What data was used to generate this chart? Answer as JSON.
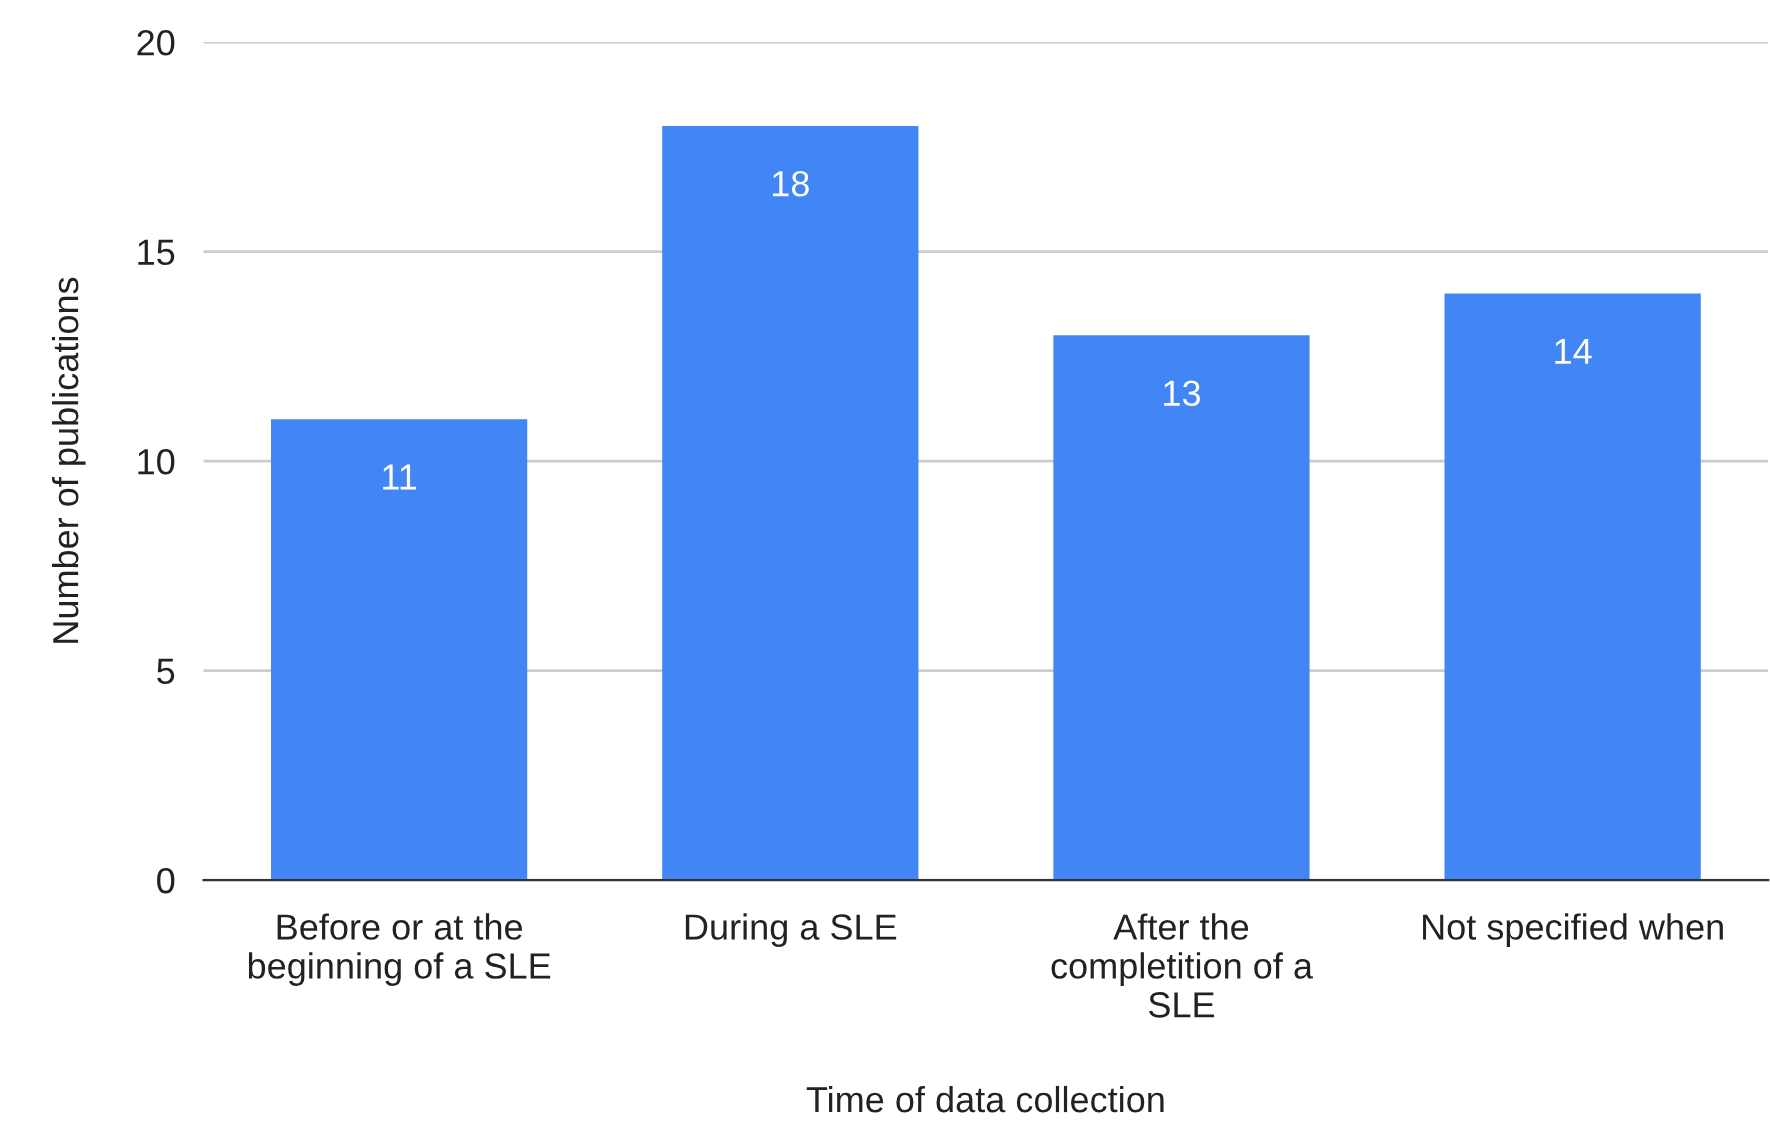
{
  "chart_data": {
    "type": "bar",
    "xlabel": "Time of data collection",
    "ylabel": "Number of publications",
    "categories": [
      "Before or at the\nbeginning of a SLE",
      "During a SLE",
      "After the\ncompletition of a\nSLE",
      "Not specified when"
    ],
    "values": [
      11,
      18,
      13,
      14
    ],
    "color": "#4285f4",
    "ylim": [
      0,
      20
    ],
    "yticks": [
      0,
      5,
      10,
      15,
      20
    ],
    "grid": "y",
    "data_labels": true
  }
}
